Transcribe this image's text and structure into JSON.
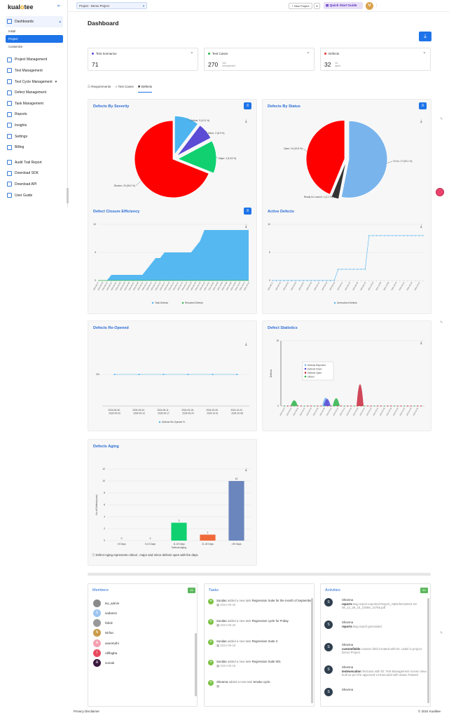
{
  "brand": {
    "logo_pre": "kual",
    "logo_o": "o",
    "logo_post": "tee"
  },
  "sidebar": {
    "dashboards": "Dashboards",
    "initial": "Initial",
    "project": "Project",
    "customize": "Customize",
    "project_mgmt": "Project Management",
    "test_mgmt": "Test Management",
    "test_cycle": "Test Cycle Management",
    "defect_mgmt": "Defect Management",
    "task_mgmt": "Task Management",
    "reports": "Reports",
    "insights": "Insights",
    "settings": "Settings",
    "billing": "Billing",
    "audit": "Audit Trail Report",
    "sdk": "Download SDK",
    "api": "Download API",
    "guide": "User Guide"
  },
  "topbar": {
    "project_label": "Project : Demo Project",
    "new_project": "+ New Project",
    "quick_start": "Quick Start Guide",
    "avatar": "M"
  },
  "page": {
    "title": "Dashboard"
  },
  "stats": {
    "scenarios": {
      "label": "Test Scenarios",
      "value": "71",
      "color": "#5b4bd5"
    },
    "cases": {
      "label": "Test Cases",
      "value": "270",
      "sub1": "101",
      "sub2": "unexpected",
      "color": "#2db34a"
    },
    "defects": {
      "label": "Defects",
      "value": "32",
      "sub1": "14",
      "sub2": "open",
      "color": "#e3342f"
    }
  },
  "tabs": {
    "requirements": "Requirements",
    "test_cases": "Test Cases",
    "defects": "Defects"
  },
  "cards": {
    "severity": "Defects By Severity",
    "status": "Defects By Status",
    "closure": "Defect Closure Efficiency",
    "active": "Active Defects",
    "reopened": "Defects Re-Opened",
    "statistics": "Defect Statistics",
    "aging": "Defects Aging"
  },
  "chart_data": [
    {
      "type": "pie",
      "title": "Defects By Severity",
      "slices": [
        {
          "label": "Critical",
          "value": 3,
          "pct": "10.3 %",
          "color": "#4db4f0"
        },
        {
          "label": "Minor",
          "value": 2,
          "pct": "6.9 %",
          "color": "#5b4bd5"
        },
        {
          "label": "Major",
          "value": 4,
          "pct": "13.8 %",
          "color": "#10d070"
        },
        {
          "label": "Blocker",
          "value": 20,
          "pct": "69.0 %",
          "color": "#ff0000"
        }
      ],
      "labels": [
        "Critical: 3 (10.3 %)",
        "Minor: 2 (6.9 %)",
        "Major: 4 (13.8 %)",
        "Blocker: 20 (69.0 %)"
      ]
    },
    {
      "type": "pie",
      "title": "Defects By Status",
      "slices": [
        {
          "label": "To Do",
          "value": 17,
          "pct": "53.1 %",
          "color": "#7ab4ec"
        },
        {
          "label": "Ready for Launch",
          "value": 1,
          "pct": "3.1 %",
          "color": "#333333"
        },
        {
          "label": "Open",
          "value": 14,
          "pct": "43.8 %",
          "color": "#ff0000"
        }
      ],
      "labels": [
        "To Do: 17 (53.1 %)",
        "Ready for Launch: 1 (3.1 %)",
        "Open: 14 (43.8 %)"
      ]
    },
    {
      "type": "area",
      "title": "Defect Closure Efficiency",
      "ylim": [
        0,
        10
      ],
      "yticks": [
        "0",
        "5",
        "10"
      ],
      "series": [
        {
          "name": "Total Defects",
          "color": "#4db4f0",
          "values": [
            0,
            0,
            0,
            1,
            1,
            1,
            1,
            1,
            1,
            1,
            1,
            2,
            3,
            4,
            4,
            5,
            5,
            5,
            5,
            5,
            5,
            5,
            6,
            7,
            9,
            9,
            9,
            9,
            9,
            9,
            9,
            9,
            9,
            9,
            9
          ]
        },
        {
          "name": "Resolved Defects",
          "color": "#2db34a",
          "values": []
        }
      ]
    },
    {
      "type": "line",
      "title": "Active Defects",
      "ylim": [
        0,
        10
      ],
      "yticks": [
        "0",
        "5",
        "10"
      ],
      "series": [
        {
          "name": "Unresolved Defects",
          "color": "#4db4f0",
          "values": [
            0,
            0,
            0,
            0,
            0,
            0,
            0,
            0,
            0,
            0,
            0,
            0,
            0,
            0,
            0,
            0,
            0,
            2,
            2,
            2,
            2,
            2,
            2,
            2,
            2,
            8,
            8,
            8,
            8,
            8,
            8,
            8,
            8,
            8,
            8,
            8,
            8,
            8,
            8,
            8
          ]
        }
      ]
    },
    {
      "type": "line",
      "title": "Defects Re-Opened",
      "yticks": [
        "0%"
      ],
      "categories": [
        "2024-08-28 - 2024-09-03",
        "2024-09-04 - 2024-09-10",
        "2024-09-11 - 2024-09-17",
        "2024-09-18 - 2024-09-24",
        "2024-09-25 - 2024-10-01",
        "2024-10-02 - 2024-10-08"
      ],
      "series": [
        {
          "name": "Defects Re-Opened %",
          "color": "#4db4f0",
          "values": [
            0,
            0,
            0,
            0,
            0,
            0
          ]
        }
      ]
    },
    {
      "type": "area",
      "title": "Defect Statistics",
      "ylabel": "Defects",
      "ylim": [
        0,
        15
      ],
      "yticks": [
        "0",
        "15"
      ],
      "series": [
        {
          "name": "Defects Reported",
          "color": "#7ab4ec"
        },
        {
          "name": "Defects Fixed",
          "color": "#5b4bd5"
        },
        {
          "name": "Defects Open",
          "color": "#c8283c"
        },
        {
          "name": "Others",
          "color": "#2db34a"
        }
      ]
    },
    {
      "type": "bar",
      "title": "Defects Aging",
      "ylabel": "No of Defects(sum)",
      "xlabel": "Defects Aging",
      "ylim": [
        0,
        12
      ],
      "yticks": [
        "0",
        "2",
        "4",
        "6",
        "8",
        "10",
        "12"
      ],
      "categories": [
        "<5 Days",
        "5-10 Days",
        "11-20 Days",
        "21-30 Days",
        ">30 Days"
      ],
      "values": [
        0,
        0,
        3,
        1,
        10
      ],
      "colors": [
        "#888888",
        "#888888",
        "#10d070",
        "#f06a3a",
        "#6b86bd"
      ]
    }
  ],
  "aging_note": "Defect Aging represents critical , major and minor defects open with the days.",
  "members": {
    "title": "Members",
    "count": "15",
    "list": [
      {
        "name": "kw_admin",
        "initial": "",
        "color": "#8a8a8a"
      },
      {
        "name": "sadanes",
        "initial": "S",
        "color": "#9cc4f0"
      },
      {
        "name": "fahdz",
        "initial": "",
        "color": "#999999"
      },
      {
        "name": "Nirfan",
        "initial": "N",
        "color": "#c99b4a"
      },
      {
        "name": "aseretuthi",
        "initial": "A",
        "color": "#f4a0b0"
      },
      {
        "name": "rdiflagba",
        "initial": "I",
        "color": "#e84a5f"
      },
      {
        "name": "somak",
        "initial": "A",
        "color": "#3b1a3f"
      }
    ]
  },
  "tasks": {
    "title": "Tasks",
    "list": [
      {
        "who": "Sundas",
        "action": "added a new task",
        "task": "Regression Suite for the month of September",
        "date": "2024-09-25"
      },
      {
        "who": "Sundas",
        "action": "added a new task",
        "task": "Regression cycle for Friday",
        "date": "2024-09-20"
      },
      {
        "who": "Sundas",
        "action": "added a new task",
        "task": "Regression Suite 3",
        "date": "2024-09-18"
      },
      {
        "who": "Sundas",
        "action": "added a new task",
        "task": "Regression Suite 001",
        "date": "2024-09-18"
      },
      {
        "who": "Shearna",
        "action": "added a new task",
        "task": "Smoke cycle",
        "date": ""
      }
    ]
  },
  "activities": {
    "title": "Activities",
    "count": "50",
    "list": [
      {
        "who": "Sheema",
        "bold": "reports",
        "text": "Bug report exported Report_ABDefects2024-10-08_12_39_15_10069_14756.pdf"
      },
      {
        "who": "Sheema",
        "bold": "reports",
        "text": "Bug report generated"
      },
      {
        "who": "Sheema",
        "bold": "customfields",
        "text": "Custom field Created with ID: Label in project Demo Project"
      },
      {
        "who": "Sheema",
        "bold": "testexecution",
        "text": "Testcase with ID: Test Management screen view is built as per the approved UI Executed with status Passed"
      },
      {
        "who": "Sheema",
        "bold": "",
        "text": ""
      }
    ]
  },
  "footer": {
    "privacy": "Privacy Disclaimer",
    "copy": "© 2024 Kualitee"
  }
}
